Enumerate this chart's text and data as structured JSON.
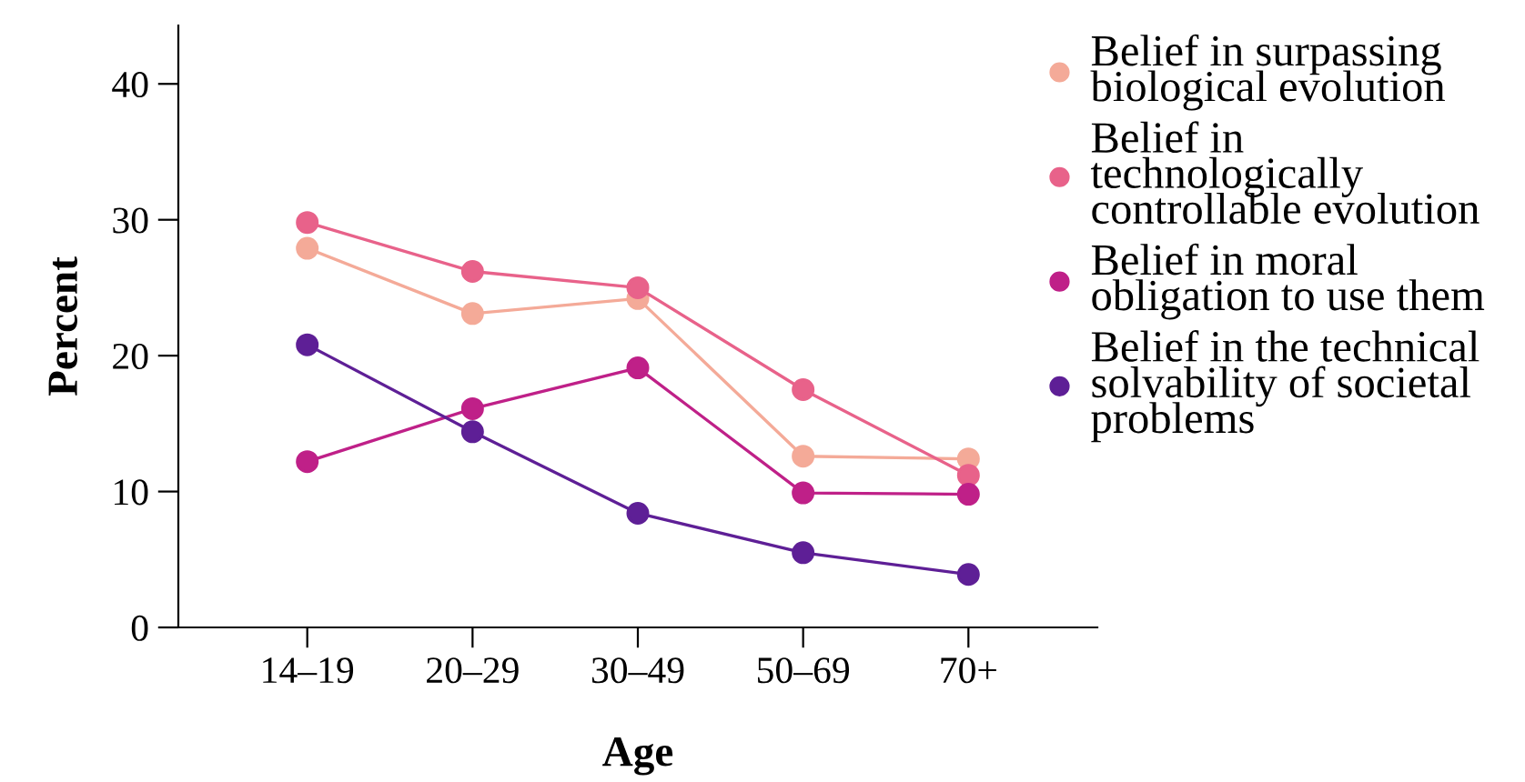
{
  "chart_data": {
    "type": "line",
    "xlabel": "Age",
    "ylabel": "Percent",
    "categories": [
      "14–19",
      "20–29",
      "30–49",
      "50–69",
      "70+"
    ],
    "series": [
      {
        "name": "Belief in surpassing biological evolution",
        "color": "#f4aa98",
        "values": [
          27.9,
          23.1,
          24.2,
          12.6,
          12.4
        ]
      },
      {
        "name": "Belief in technologically controllable evolution",
        "color": "#e8628a",
        "values": [
          29.8,
          26.2,
          25.0,
          17.5,
          11.2
        ]
      },
      {
        "name": "Belief in moral obligation to use them",
        "color": "#bf2088",
        "values": [
          12.2,
          16.1,
          19.1,
          9.9,
          9.8
        ]
      },
      {
        "name": "Belief in the technical solvability of societal problems",
        "color": "#5e1f96",
        "values": [
          20.8,
          14.4,
          8.4,
          5.5,
          3.9
        ]
      }
    ],
    "ylim": [
      0,
      44.3
    ],
    "yticks": [
      0,
      10,
      20,
      30,
      40
    ],
    "grid": false,
    "legend": "right",
    "marker": "circle",
    "line_style": "solid"
  }
}
